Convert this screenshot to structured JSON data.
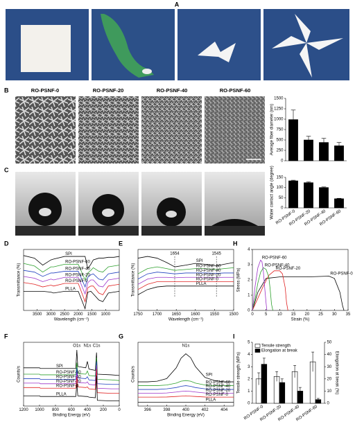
{
  "photos": {
    "panel": "A"
  },
  "sem_images": {
    "panel": "B",
    "titles": [
      "RO-PSNF-0",
      "RO-PSNF-20",
      "RO-PSNF-40",
      "RO-PSNF-60"
    ]
  },
  "contact_angle_images": {
    "panel": "C"
  },
  "chart_data": [
    {
      "type": "bar",
      "values": [
        990,
        500,
        440,
        360
      ],
      "errors": [
        230,
        90,
        100,
        80
      ],
      "color": "#000000",
      "ylabel": "Average fiber diameter (nm)",
      "ylim": [
        0,
        1500
      ],
      "yticks": [
        0,
        250,
        500,
        750,
        1000,
        1250,
        1500
      ]
    },
    {
      "type": "bar",
      "categories": [
        "RO-PSNF-0",
        "RO-PSNF-20",
        "RO-PSNF-40",
        "RO-PSNF-60"
      ],
      "values": [
        133,
        124,
        100,
        45
      ],
      "errors": [
        3,
        4,
        3,
        2
      ],
      "color": "#000000",
      "ylabel": "Water contact angle (degree)",
      "ylim": [
        0,
        150
      ],
      "yticks": [
        0,
        50,
        100,
        150
      ]
    },
    {
      "type": "line",
      "panel": "D",
      "xlabel": "Wavelength (cm⁻¹)",
      "ylabel": "Transmittance (%)",
      "xlim": [
        4000,
        500
      ],
      "xticks": [
        3500,
        3000,
        2500,
        2000,
        1500,
        1000
      ],
      "ylim": [
        0,
        7
      ],
      "x": [
        4000,
        3600,
        3300,
        3000,
        2900,
        2500,
        2000,
        1750,
        1650,
        1540,
        1450,
        1250,
        1100,
        900,
        700,
        500
      ],
      "series": [
        {
          "name": "SPI",
          "color": "#000000",
          "values": [
            6.3,
            6.0,
            5.2,
            5.8,
            5.9,
            6.2,
            6.2,
            6.2,
            4.8,
            5.3,
            5.8,
            6.0,
            6.0,
            6.1,
            6.1,
            6.2
          ]
        },
        {
          "name": "RO-PSNF-60",
          "color": "#2ca02c",
          "values": [
            5.4,
            5.1,
            4.4,
            5.0,
            5.0,
            5.3,
            5.3,
            3.5,
            4.3,
            4.6,
            4.9,
            4.5,
            4.4,
            5.0,
            5.1,
            5.2
          ]
        },
        {
          "name": "RO-PSNF-40",
          "color": "#1f3fbf",
          "values": [
            4.6,
            4.4,
            3.9,
            4.3,
            4.3,
            4.5,
            4.5,
            2.7,
            3.8,
            4.1,
            4.2,
            3.6,
            3.5,
            4.2,
            4.3,
            4.4
          ]
        },
        {
          "name": "RO-PSNF-20",
          "color": "#9b30c8",
          "values": [
            3.9,
            3.7,
            3.3,
            3.6,
            3.5,
            3.8,
            3.8,
            1.9,
            3.2,
            3.5,
            3.5,
            2.8,
            2.7,
            3.5,
            3.6,
            3.7
          ]
        },
        {
          "name": "RO-PSNF-0",
          "color": "#e02020",
          "values": [
            3.2,
            3.0,
            2.7,
            2.9,
            2.8,
            3.1,
            3.1,
            1.0,
            2.6,
            2.8,
            2.8,
            2.0,
            1.8,
            2.8,
            2.9,
            3.0
          ]
        },
        {
          "name": "PLLA",
          "color": "#000000",
          "values": [
            2.2,
            2.2,
            2.2,
            2.1,
            2.0,
            2.2,
            2.2,
            0.2,
            2.1,
            2.2,
            1.9,
            1.2,
            1.0,
            2.0,
            2.1,
            2.2
          ]
        }
      ]
    },
    {
      "type": "line",
      "panel": "E",
      "xlabel": "Wavelength (cm⁻¹)",
      "ylabel": "Transmittance (%)",
      "xlim": [
        1750,
        1500
      ],
      "xticks": [
        1750,
        1700,
        1650,
        1600,
        1550,
        1500
      ],
      "ylim": [
        0,
        7
      ],
      "annotations": [
        1654,
        1545
      ],
      "x": [
        1750,
        1725,
        1700,
        1675,
        1654,
        1625,
        1600,
        1575,
        1545,
        1525,
        1500
      ],
      "series": [
        {
          "name": "SPI",
          "color": "#000000",
          "values": [
            6.0,
            6.2,
            6.0,
            5.5,
            5.0,
            5.2,
            5.4,
            5.3,
            5.1,
            5.3,
            5.5
          ]
        },
        {
          "name": "RO-PSNF-60",
          "color": "#2ca02c",
          "values": [
            4.2,
            4.8,
            5.0,
            4.8,
            4.6,
            4.7,
            4.8,
            4.8,
            4.7,
            4.8,
            4.9
          ]
        },
        {
          "name": "RO-PSNF-40",
          "color": "#1f3fbf",
          "values": [
            3.6,
            4.2,
            4.4,
            4.3,
            4.2,
            4.3,
            4.3,
            4.3,
            4.25,
            4.3,
            4.3
          ]
        },
        {
          "name": "RO-PSNF-20",
          "color": "#9b30c8",
          "values": [
            3.0,
            3.6,
            3.8,
            3.8,
            3.75,
            3.8,
            3.8,
            3.8,
            3.78,
            3.8,
            3.8
          ]
        },
        {
          "name": "RO-PSNF-0",
          "color": "#e02020",
          "values": [
            2.4,
            3.0,
            3.3,
            3.3,
            3.3,
            3.3,
            3.3,
            3.3,
            3.3,
            3.3,
            3.3
          ]
        },
        {
          "name": "PLLA",
          "color": "#000000",
          "values": [
            1.8,
            2.4,
            2.7,
            2.8,
            2.8,
            2.8,
            2.8,
            2.8,
            2.8,
            2.8,
            2.8
          ]
        }
      ]
    },
    {
      "type": "line",
      "panel": "H",
      "xlabel": "Strain (%)",
      "ylabel": "Stress (MPa)",
      "xlim": [
        0,
        35
      ],
      "xticks": [
        0,
        5,
        10,
        15,
        20,
        25,
        30,
        35
      ],
      "ylim": [
        0,
        4
      ],
      "yticks": [
        0,
        1,
        2,
        3,
        4
      ],
      "series": [
        {
          "name": "RO-PSNF-0",
          "color": "#000000",
          "x": [
            0,
            2,
            5,
            10,
            20,
            28,
            30,
            32,
            33,
            33.5
          ],
          "values": [
            0,
            1.2,
            2.1,
            2.2,
            2.2,
            2.25,
            2.1,
            1.2,
            0.3,
            0
          ]
        },
        {
          "name": "RO-PSNF-20",
          "color": "#e02020",
          "x": [
            0,
            2,
            4,
            6,
            8,
            10,
            11,
            12,
            12.5,
            13
          ],
          "values": [
            0,
            0.8,
            1.6,
            2.3,
            2.6,
            2.6,
            2.4,
            1.5,
            0.5,
            0
          ]
        },
        {
          "name": "RO-PSNF-40",
          "color": "#2ca02c",
          "x": [
            0,
            1,
            2,
            3,
            4,
            5,
            6,
            6.5,
            7,
            7.5
          ],
          "values": [
            0,
            0.8,
            1.8,
            2.5,
            2.8,
            2.7,
            2.2,
            1.4,
            0.4,
            0
          ]
        },
        {
          "name": "RO-PSNF-60",
          "color": "#9b30c8",
          "x": [
            0,
            0.5,
            1,
            2,
            3,
            3.5,
            4,
            4.5,
            5,
            5.3
          ],
          "values": [
            0,
            0.8,
            1.6,
            2.8,
            3.3,
            3.2,
            2.6,
            1.5,
            0.5,
            0
          ]
        }
      ]
    },
    {
      "type": "line",
      "panel": "F",
      "xlabel": "Binding Energy (eV)",
      "ylabel": "Counts/s",
      "xlim": [
        1200,
        0
      ],
      "xticks": [
        1200,
        1000,
        800,
        600,
        400,
        200,
        0
      ],
      "ylim": [
        0,
        10
      ],
      "annotations": [
        {
          "text": "O1s",
          "x": 532
        },
        {
          "text": "N1s",
          "x": 400
        },
        {
          "text": "C1s",
          "x": 285
        }
      ],
      "x": [
        1200,
        1000,
        990,
        800,
        600,
        545,
        532,
        520,
        420,
        400,
        380,
        300,
        285,
        275,
        100,
        0
      ],
      "series": [
        {
          "name": "SPI",
          "color": "#000000",
          "values": [
            6.0,
            6.0,
            5.9,
            5.9,
            5.9,
            5.9,
            8.8,
            6.2,
            6.0,
            7.0,
            5.8,
            5.6,
            8.4,
            5.0,
            4.9,
            4.8
          ]
        },
        {
          "name": "RO-PSNF-60",
          "color": "#2ca02c",
          "values": [
            5.0,
            5.0,
            4.9,
            4.9,
            4.9,
            4.9,
            6.8,
            5.1,
            5.0,
            5.5,
            4.8,
            4.7,
            7.6,
            4.2,
            4.1,
            4.0
          ]
        },
        {
          "name": "RO-PSNF-40",
          "color": "#1f3fbf",
          "values": [
            4.3,
            4.3,
            4.2,
            4.2,
            4.2,
            4.2,
            6.0,
            4.4,
            4.3,
            4.6,
            4.1,
            4.0,
            7.0,
            3.5,
            3.4,
            3.4
          ]
        },
        {
          "name": "RO-PSNF-20",
          "color": "#9b30c8",
          "values": [
            3.6,
            3.6,
            3.5,
            3.5,
            3.5,
            3.5,
            5.3,
            3.7,
            3.6,
            3.8,
            3.4,
            3.3,
            6.4,
            2.8,
            2.7,
            2.7
          ]
        },
        {
          "name": "RO-PSNF-0",
          "color": "#e02020",
          "values": [
            2.9,
            2.9,
            2.8,
            2.8,
            2.8,
            2.8,
            4.6,
            3.0,
            2.9,
            3.0,
            2.7,
            2.6,
            5.8,
            2.1,
            2.0,
            2.0
          ]
        },
        {
          "name": "PLLA",
          "color": "#000000",
          "values": [
            1.6,
            1.6,
            1.5,
            1.5,
            1.5,
            1.5,
            3.6,
            1.6,
            1.5,
            1.5,
            1.4,
            1.3,
            4.8,
            0.9,
            0.8,
            0.8
          ]
        }
      ]
    },
    {
      "type": "line",
      "panel": "G",
      "xlabel": "Binding Energy (eV)",
      "ylabel": "Counts/s",
      "xlim": [
        395,
        405
      ],
      "xticks": [
        396,
        398,
        400,
        402,
        404
      ],
      "ylim": [
        0,
        10
      ],
      "annotations": [
        {
          "text": "N1s",
          "x": 400
        }
      ],
      "x": [
        395,
        396,
        397,
        398,
        399,
        399.5,
        400,
        400.5,
        401,
        402,
        403,
        404,
        405
      ],
      "series": [
        {
          "name": "SPI",
          "color": "#000000",
          "values": [
            3.8,
            3.8,
            3.9,
            4.3,
            6.0,
            7.5,
            8.2,
            7.6,
            6.2,
            4.5,
            4.0,
            3.8,
            3.8
          ]
        },
        {
          "name": "RO-PSNF-60",
          "color": "#2ca02c",
          "values": [
            3.2,
            3.2,
            3.2,
            3.3,
            3.6,
            3.9,
            4.0,
            3.9,
            3.6,
            3.3,
            3.2,
            3.2,
            3.2
          ]
        },
        {
          "name": "RO-PSNF-40",
          "color": "#1f3fbf",
          "values": [
            2.6,
            2.6,
            2.6,
            2.7,
            2.9,
            3.1,
            3.2,
            3.1,
            2.9,
            2.7,
            2.6,
            2.6,
            2.6
          ]
        },
        {
          "name": "RO-PSNF-20",
          "color": "#9b30c8",
          "values": [
            2.0,
            2.0,
            2.0,
            2.05,
            2.2,
            2.3,
            2.35,
            2.3,
            2.2,
            2.05,
            2.0,
            2.0,
            2.0
          ]
        },
        {
          "name": "RO-PSNF-0",
          "color": "#e02020",
          "values": [
            1.4,
            1.4,
            1.4,
            1.42,
            1.5,
            1.55,
            1.6,
            1.55,
            1.5,
            1.42,
            1.4,
            1.4,
            1.4
          ]
        },
        {
          "name": "PLLA",
          "color": "#000000",
          "values": [
            0.6,
            0.6,
            0.6,
            0.6,
            0.6,
            0.6,
            0.6,
            0.6,
            0.6,
            0.6,
            0.6,
            0.6,
            0.6
          ]
        }
      ]
    },
    {
      "type": "bar",
      "panel": "I",
      "categories": [
        "RO-PSNF-0",
        "RO-PSNF-20",
        "RO-PSNF-40",
        "RO-PSNF-60"
      ],
      "ylabel": "Tensile strength (MPa)",
      "y2label": "Elongation at break (%)",
      "ylim": [
        0,
        5
      ],
      "yticks": [
        0,
        1,
        2,
        3,
        4,
        5
      ],
      "y2lim": [
        0,
        50
      ],
      "y2ticks": [
        0,
        10,
        20,
        30,
        40,
        50
      ],
      "series": [
        {
          "name": "Tensile strength",
          "color": "#ffffff",
          "values": [
            2.0,
            2.2,
            2.6,
            3.4
          ],
          "errors": [
            0.5,
            0.4,
            0.5,
            0.8
          ]
        },
        {
          "name": "Elongation at break",
          "color": "#000000",
          "axis": "y2",
          "values": [
            32,
            17,
            10,
            3
          ],
          "errors": [
            5,
            3,
            3,
            1
          ]
        }
      ]
    }
  ]
}
